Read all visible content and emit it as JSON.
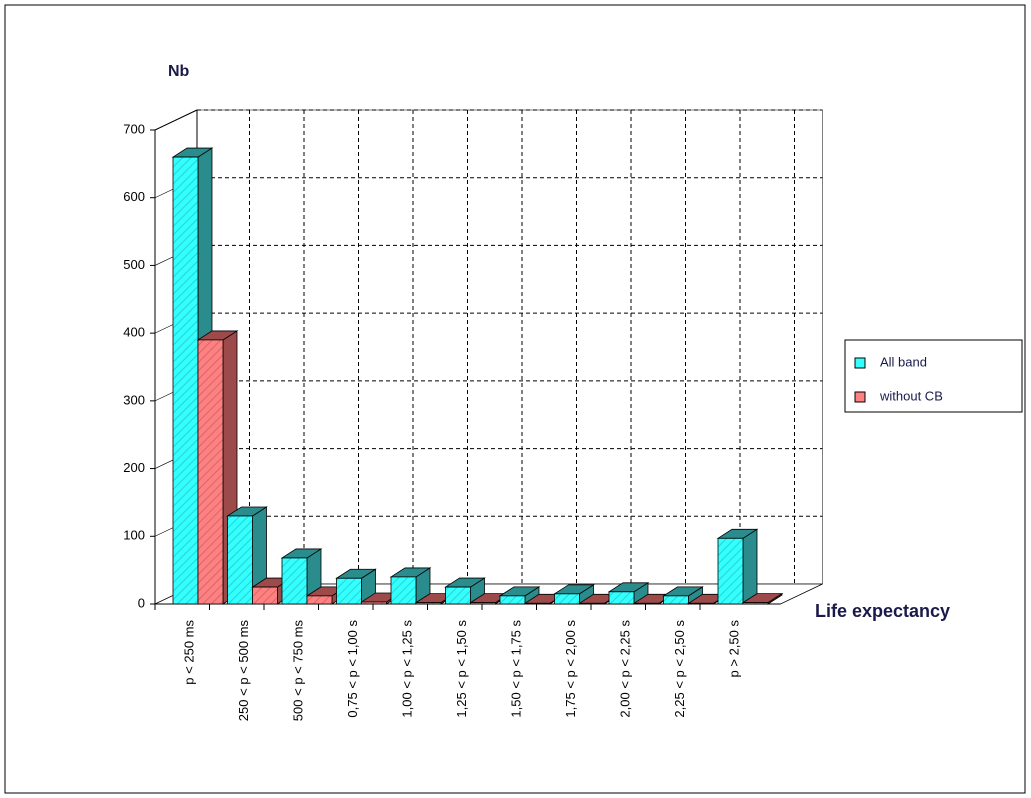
{
  "chart_data": {
    "type": "bar3d",
    "y_label": "Nb",
    "x_label": "Life expectancy",
    "categories": [
      "p < 250 ms",
      "250 < p < 500 ms",
      "500 < p < 750 ms",
      "0,75 < p < 1,00 s",
      "1,00 < p < 1,25 s",
      "1,25 < p < 1,50 s",
      "1,50 < p < 1,75 s",
      "1,75 < p < 2,00 s",
      "2,00 < p < 2,25 s",
      "2,25 < p < 2,50 s",
      "p > 2,50 s"
    ],
    "series": [
      {
        "name": "All band",
        "color": "#33ffff",
        "side_color": "#2a8c8c",
        "values": [
          660,
          130,
          68,
          38,
          40,
          25,
          12,
          15,
          18,
          12,
          97
        ]
      },
      {
        "name": "without CB",
        "color": "#ff8080",
        "side_color": "#9c4a4a",
        "values": [
          390,
          25,
          12,
          3,
          2,
          2,
          1,
          1,
          1,
          1,
          2
        ]
      }
    ],
    "ylim": [
      0,
      700
    ],
    "yticks": [
      0,
      100,
      200,
      300,
      400,
      500,
      600,
      700
    ],
    "grid": true,
    "legend": "right"
  }
}
